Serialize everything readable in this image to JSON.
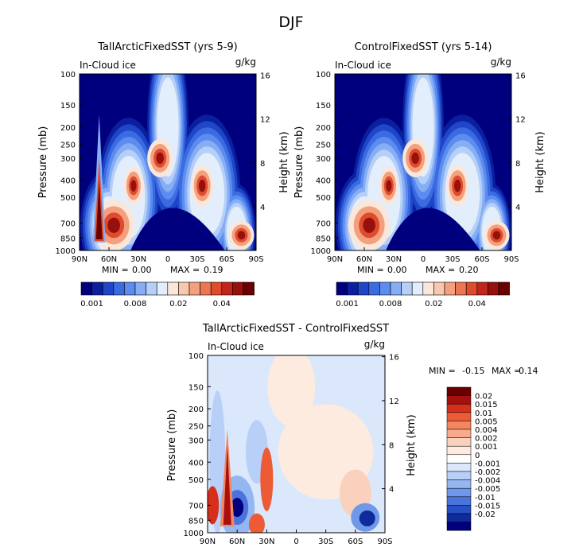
{
  "page": {
    "title": "DJF"
  },
  "colors": {
    "abs_scale": [
      "#00007f",
      "#0a1f9e",
      "#1f45c8",
      "#3b6be0",
      "#5d8cf0",
      "#86aef5",
      "#b5cff8",
      "#e2eefb",
      "#fbe7da",
      "#f8c8ae",
      "#f3a07f",
      "#ec7552",
      "#df4b2c",
      "#c2261a",
      "#96100c",
      "#6b0000"
    ],
    "diff_scale": [
      "#6b0000",
      "#a81010",
      "#d6301c",
      "#ec5a36",
      "#f3865f",
      "#f7ab8c",
      "#fad1bd",
      "#fdebe0",
      "#ffffff",
      "#dbe8fb",
      "#b8d0f7",
      "#94b7f2",
      "#6f98ea",
      "#4a74dc",
      "#2a4fc4",
      "#0f2a9a",
      "#00007f"
    ],
    "frame": "#000000"
  },
  "chart_data": [
    {
      "type": "heatmap",
      "id": "left",
      "title": "TallArcticFixedSST (yrs 5-9)",
      "left_label": "In-Cloud ice",
      "unit_label": "g/kg",
      "xlabel": "",
      "ylabel": "Pressure (mb)",
      "y2label": "Height (km)",
      "x_ticks": [
        "90N",
        "60N",
        "30N",
        "0",
        "30S",
        "60S",
        "90S"
      ],
      "x_values": [
        90,
        60,
        30,
        0,
        -30,
        -60,
        -90
      ],
      "y_ticks": [
        "100",
        "150",
        "200",
        "250",
        "300",
        "400",
        "500",
        "700",
        "850",
        "1000"
      ],
      "y_values": [
        100,
        150,
        200,
        250,
        300,
        400,
        500,
        700,
        850,
        1000
      ],
      "y2_ticks": [
        "16",
        "12",
        "8",
        "4"
      ],
      "y2_values": [
        16,
        12,
        8,
        4
      ],
      "ylim": [
        1000,
        100
      ],
      "xlim": [
        90,
        -90
      ],
      "min": "0.00",
      "max": "0.19",
      "stats_min_label": "MIN =",
      "stats_max_label": "MAX =",
      "colorbar_ticks": [
        "0.001",
        "0.008",
        "0.02",
        "0.04"
      ]
    },
    {
      "type": "heatmap",
      "id": "right",
      "title": "ControlFixedSST (yrs 5-14)",
      "left_label": "In-Cloud ice",
      "unit_label": "g/kg",
      "xlabel": "",
      "ylabel": "Pressure (mb)",
      "y2label": "Height (km)",
      "x_ticks": [
        "90N",
        "60N",
        "30N",
        "0",
        "30S",
        "60S",
        "90S"
      ],
      "x_values": [
        90,
        60,
        30,
        0,
        -30,
        -60,
        -90
      ],
      "y_ticks": [
        "100",
        "150",
        "200",
        "250",
        "300",
        "400",
        "500",
        "700",
        "850",
        "1000"
      ],
      "y_values": [
        100,
        150,
        200,
        250,
        300,
        400,
        500,
        700,
        850,
        1000
      ],
      "y2_ticks": [
        "16",
        "12",
        "8",
        "4"
      ],
      "y2_values": [
        16,
        12,
        8,
        4
      ],
      "ylim": [
        1000,
        100
      ],
      "xlim": [
        90,
        -90
      ],
      "min": "0.00",
      "max": "0.20",
      "stats_min_label": "MIN =",
      "stats_max_label": "MAX =",
      "colorbar_ticks": [
        "0.001",
        "0.008",
        "0.02",
        "0.04"
      ]
    },
    {
      "type": "heatmap",
      "id": "diff",
      "title": "TallArcticFixedSST - ControlFixedSST",
      "left_label": "In-Cloud ice",
      "unit_label": "g/kg",
      "xlabel": "",
      "ylabel": "Pressure (mb)",
      "y2label": "Height (km)",
      "x_ticks": [
        "90N",
        "60N",
        "30N",
        "0",
        "30S",
        "60S",
        "90S"
      ],
      "x_values": [
        90,
        60,
        30,
        0,
        -30,
        -60,
        -90
      ],
      "y_ticks": [
        "100",
        "150",
        "200",
        "250",
        "300",
        "400",
        "500",
        "700",
        "850",
        "1000"
      ],
      "y_values": [
        100,
        150,
        200,
        250,
        300,
        400,
        500,
        700,
        850,
        1000
      ],
      "y2_ticks": [
        "16",
        "12",
        "8",
        "4"
      ],
      "y2_values": [
        16,
        12,
        8,
        4
      ],
      "ylim": [
        1000,
        100
      ],
      "xlim": [
        90,
        -90
      ],
      "min": "-0.15",
      "max": "0.14",
      "stats_min_label": "MIN =",
      "stats_max_label": "MAX =",
      "colorbar_ticks": [
        "0.02",
        "0.015",
        "0.01",
        "0.005",
        "0.004",
        "0.002",
        "0.001",
        "0",
        "-0.001",
        "-0.002",
        "-0.004",
        "-0.005",
        "-0.01",
        "-0.015",
        "-0.02"
      ]
    }
  ]
}
